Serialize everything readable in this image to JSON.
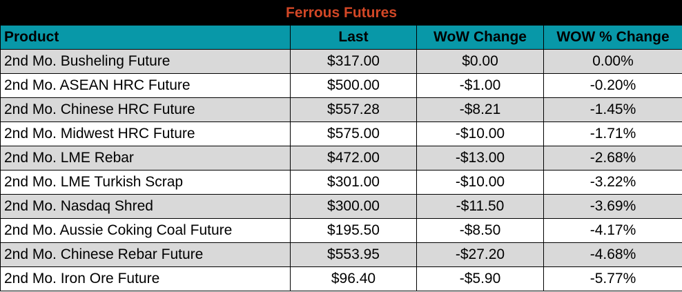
{
  "title": "Ferrous Futures",
  "columns": [
    "Product",
    "Last",
    "WoW Change",
    "WOW % Change"
  ],
  "rows": [
    [
      "2nd Mo. Busheling Future",
      "$317.00",
      "$0.00",
      "0.00%"
    ],
    [
      "2nd Mo. ASEAN HRC Future",
      "$500.00",
      "-$1.00",
      "-0.20%"
    ],
    [
      "2nd Mo. Chinese HRC Future",
      "$557.28",
      "-$8.21",
      "-1.45%"
    ],
    [
      "2nd Mo. Midwest HRC Future",
      "$575.00",
      "-$10.00",
      "-1.71%"
    ],
    [
      "2nd Mo. LME Rebar",
      "$472.00",
      "-$13.00",
      "-2.68%"
    ],
    [
      "2nd Mo. LME Turkish Scrap",
      "$301.00",
      "-$10.00",
      "-3.22%"
    ],
    [
      "2nd Mo. Nasdaq Shred",
      "$300.00",
      "-$11.50",
      "-3.69%"
    ],
    [
      "2nd Mo. Aussie Coking Coal Future",
      "$195.50",
      "-$8.50",
      "-4.17%"
    ],
    [
      "2nd Mo. Chinese Rebar Future",
      "$553.95",
      "-$27.20",
      "-4.68%"
    ],
    [
      "2nd Mo. Iron Ore Future",
      "$96.40",
      "-$5.90",
      "-5.77%"
    ]
  ],
  "colors": {
    "title_bg": "#000000",
    "title_text": "#d24726",
    "header_bg": "#0898a8",
    "stripe": "#d9d9d9"
  }
}
